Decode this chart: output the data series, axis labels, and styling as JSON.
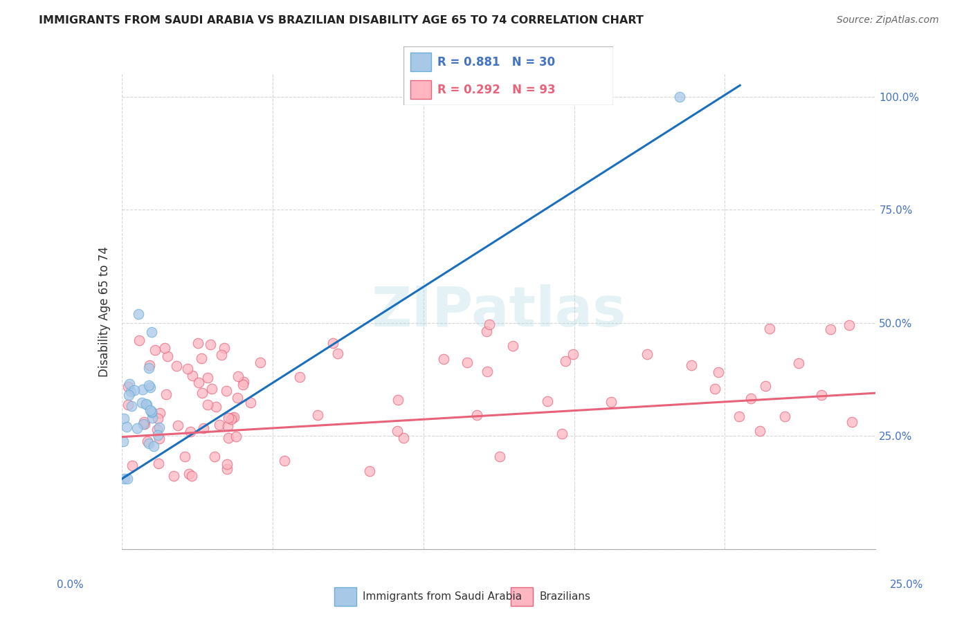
{
  "title": "IMMIGRANTS FROM SAUDI ARABIA VS BRAZILIAN DISABILITY AGE 65 TO 74 CORRELATION CHART",
  "source": "Source: ZipAtlas.com",
  "ylabel": "Disability Age 65 to 74",
  "legend1_label": "R = 0.881   N = 30",
  "legend2_label": "R = 0.292   N = 93",
  "legend1_scatter_color": "#a8c8e8",
  "legend1_edge_color": "#6baed6",
  "legend2_scatter_color": "#ffb6c1",
  "legend2_edge_color": "#e8627a",
  "line1_color": "#1a6fbd",
  "line2_color": "#e8627a",
  "legend1_text_color": "#4472c4",
  "legend2_text_color": "#e8627a",
  "right_tick_color": "#4472c4",
  "watermark": "ZIPatlas",
  "xlim": [
    0,
    0.25
  ],
  "ylim": [
    0,
    1.05
  ],
  "sa_line_x": [
    0.0,
    0.205
  ],
  "sa_line_y": [
    0.155,
    1.025
  ],
  "br_line_x": [
    0.0,
    0.25
  ],
  "br_line_y": [
    0.248,
    0.345
  ]
}
